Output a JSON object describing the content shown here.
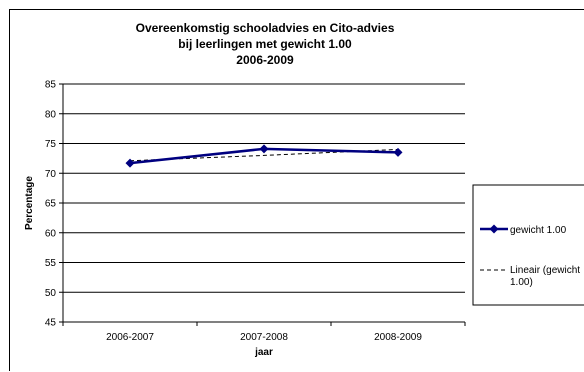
{
  "chart_data": {
    "type": "line",
    "title_lines": [
      "Overeenkomstig schooladvies en Cito-advies",
      "bij leerlingen met gewicht 1.00",
      "2006-2009"
    ],
    "xlabel": "jaar",
    "ylabel": "Percentage",
    "categories": [
      "2006-2007",
      "2007-2008",
      "2008-2009"
    ],
    "ylim": [
      45,
      85
    ],
    "yticks": [
      45,
      50,
      55,
      60,
      65,
      70,
      75,
      80,
      85
    ],
    "grid": true,
    "legend_position": "right",
    "series": [
      {
        "name": "gewicht 1.00",
        "values": [
          71.7,
          74.1,
          73.5
        ],
        "color": "#000080",
        "style": "solid-diamond"
      }
    ],
    "trendline": {
      "label_lines": [
        "Lineair (gewicht",
        "1.00)"
      ],
      "values": [
        72.1,
        73.0,
        74.0
      ],
      "color": "#000000",
      "style": "dashed"
    }
  }
}
